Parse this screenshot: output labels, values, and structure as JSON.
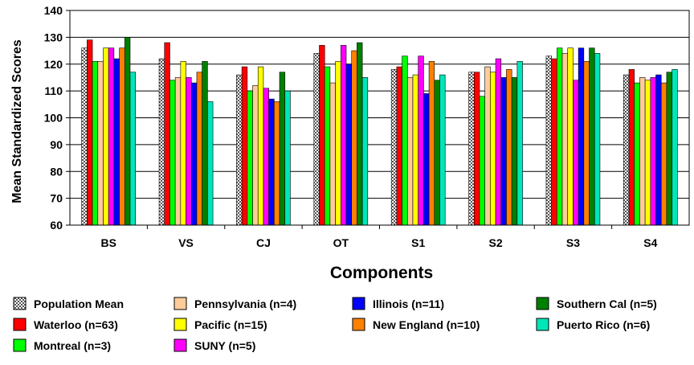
{
  "chart_data": {
    "type": "bar",
    "title": "",
    "xlabel": "Components",
    "ylabel": "Mean Standardized Scores",
    "ylim": [
      60,
      140
    ],
    "yticks": [
      60,
      70,
      80,
      90,
      100,
      110,
      120,
      130,
      140
    ],
    "grid": true,
    "legend_position": "bottom",
    "categories": [
      "BS",
      "VS",
      "CJ",
      "OT",
      "S1",
      "S2",
      "S3",
      "S4"
    ],
    "series": [
      {
        "name": "Population Mean",
        "color": "#c8c8c8",
        "pattern": "checker",
        "values": [
          126,
          122,
          116,
          124,
          118,
          117,
          123,
          116
        ]
      },
      {
        "name": "Waterloo (n=63)",
        "color": "#ff0000",
        "values": [
          129,
          128,
          119,
          127,
          119,
          117,
          122,
          118
        ]
      },
      {
        "name": "Montreal (n=3)",
        "color": "#00ff00",
        "values": [
          121,
          114,
          110,
          119,
          123,
          108,
          126,
          113
        ]
      },
      {
        "name": "Pennsylvania (n=4)",
        "color": "#ffcc99",
        "values": [
          121,
          115,
          112,
          113,
          115,
          119,
          124,
          115
        ]
      },
      {
        "name": "Pacific (n=15)",
        "color": "#ffff00",
        "values": [
          126,
          121,
          119,
          121,
          116,
          117,
          126,
          114
        ]
      },
      {
        "name": "SUNY (n=5)",
        "color": "#ff00ff",
        "values": [
          126,
          115,
          111,
          127,
          123,
          122,
          114,
          115
        ]
      },
      {
        "name": "Illinois (n=11)",
        "color": "#0000ff",
        "values": [
          122,
          113,
          107,
          120,
          109,
          115,
          126,
          116
        ]
      },
      {
        "name": "New England (n=10)",
        "color": "#ff8000",
        "values": [
          126,
          117,
          106,
          125,
          121,
          118,
          121,
          113
        ]
      },
      {
        "name": "Southern Cal (n=5)",
        "color": "#008000",
        "values": [
          130,
          121,
          117,
          128,
          114,
          115,
          126,
          117
        ]
      },
      {
        "name": "Puerto Rico (n=6)",
        "color": "#00e6b8",
        "values": [
          117,
          106,
          110,
          115,
          116,
          121,
          124,
          118
        ]
      }
    ],
    "legend_order": [
      0,
      3,
      6,
      8,
      1,
      4,
      7,
      9,
      2,
      5
    ]
  }
}
